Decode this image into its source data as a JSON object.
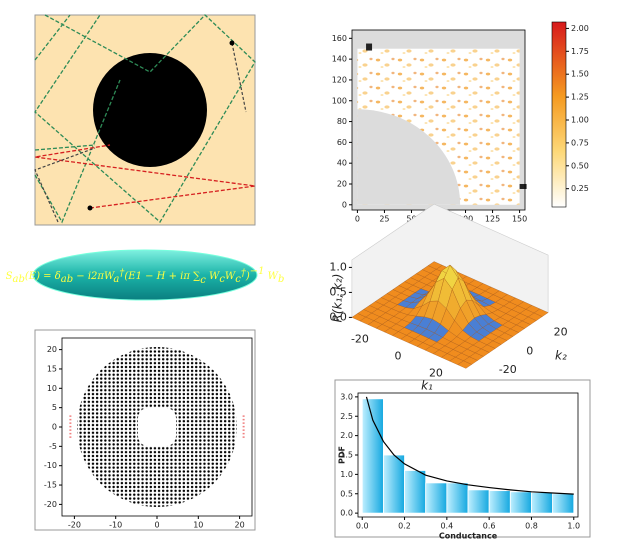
{
  "chart_data": [
    {
      "type": "heatmap",
      "xlim": [
        -5,
        155
      ],
      "ylim": [
        -5,
        168
      ],
      "xticks": [
        0,
        25,
        50,
        75,
        100,
        125,
        150
      ],
      "yticks": [
        0,
        20,
        40,
        60,
        80,
        100,
        120,
        140,
        160
      ],
      "clim": [
        0.05,
        2.07
      ],
      "cticks": [
        0.25,
        {
          "value": 0.5,
          "label": "0.50"
        },
        0.75,
        {
          "value": 1,
          "label": "1.00"
        },
        1.25,
        {
          "value": 1.5,
          "label": "1.50"
        },
        1.75,
        {
          "value": 2,
          "label": "2.00"
        }
      ]
    },
    {
      "type": "surface",
      "zlabel": "R(k₁, k₂)",
      "xlabel": "k₁",
      "ylabel": "k₂",
      "zlim": [
        0,
        1.1
      ],
      "zticks": [
        {
          "value": 0,
          "label": "0.0"
        },
        0.5,
        {
          "value": 1,
          "label": "1.0"
        }
      ],
      "xticks": [
        -20,
        0,
        20
      ],
      "yticks": [
        -20,
        0,
        20
      ]
    },
    {
      "type": "lattice",
      "xlim": [
        -23,
        23
      ],
      "ylim": [
        -23,
        23
      ],
      "xticks": [
        -20,
        -10,
        0,
        10,
        20
      ],
      "yticks": [
        -20,
        -15,
        -10,
        -5,
        0,
        5,
        10,
        15,
        20
      ]
    },
    {
      "type": "histogram",
      "xlabel": "Conductance",
      "ylabel": "PDF",
      "xlim": [
        -0.02,
        1.02
      ],
      "ylim": [
        -0.1,
        3.1
      ],
      "xticks": [
        {
          "value": 0,
          "label": "0.0"
        },
        0.2,
        0.4,
        0.6,
        0.8,
        {
          "value": 1,
          "label": "1.0"
        }
      ],
      "yticks": [
        {
          "value": 0,
          "label": "0.0"
        },
        0.5,
        {
          "value": 1,
          "label": "1.0"
        },
        1.5,
        {
          "value": 2,
          "label": "2.0"
        },
        2.5,
        {
          "value": 3,
          "label": "3.0"
        }
      ],
      "bins": [
        0,
        0.1,
        0.2,
        0.3,
        0.4,
        0.5,
        0.6,
        0.7,
        0.8,
        0.9,
        1.0
      ],
      "values": [
        2.95,
        1.5,
        1.1,
        0.78,
        0.78,
        0.6,
        0.58,
        0.55,
        0.53,
        0.5
      ],
      "curve": {
        "x": [
          0.02,
          0.05,
          0.1,
          0.15,
          0.2,
          0.3,
          0.4,
          0.5,
          0.6,
          0.7,
          0.8,
          0.9,
          1.0
        ],
        "values": [
          3.0,
          2.4,
          1.85,
          1.5,
          1.27,
          0.98,
          0.83,
          0.73,
          0.66,
          0.6,
          0.55,
          0.52,
          0.49
        ]
      }
    }
  ],
  "equation": [
    "S",
    "ab",
    "(E) = δ",
    "ab",
    " − i2πW",
    "a",
    "†",
    "(E1 − H + iπ ",
    "∑",
    "c",
    " W",
    "c",
    "W",
    "c",
    "†",
    ")",
    "−1",
    " W",
    "b"
  ]
}
